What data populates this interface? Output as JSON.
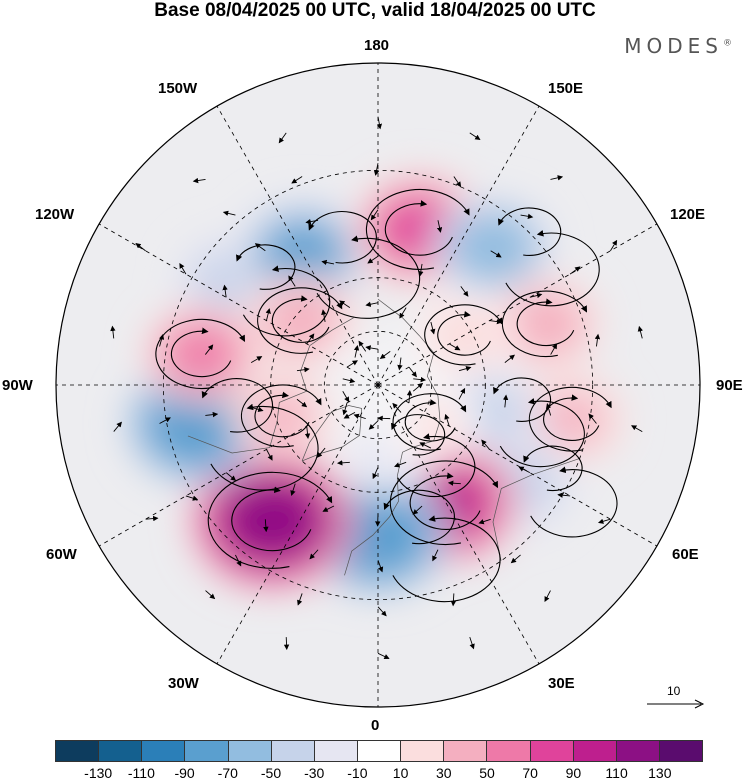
{
  "title": "Base 08/04/2025 00 UTC, valid 18/04/2025 00 UTC",
  "brand": "MODES",
  "brand_mark": "®",
  "longitude_labels": {
    "n180": "180",
    "e150": "150E",
    "e120": "120E",
    "e90": "90E",
    "e60": "60E",
    "e30": "30E",
    "zero": "0",
    "w30": "30W",
    "w60": "60W",
    "w90": "90W",
    "w120": "120W",
    "w150": "150W"
  },
  "reference_vector_label": "10",
  "colorbar": {
    "colors": [
      "#0d3c5e",
      "#14608f",
      "#2b7fb8",
      "#5a9fcf",
      "#92bde0",
      "#c6d3ea",
      "#e6e6f2",
      "#ffffff",
      "#fbdede",
      "#f4afc0",
      "#ee79a8",
      "#e0439b",
      "#be1f8e",
      "#8c1084",
      "#5a0c6e"
    ],
    "tick_labels": [
      "-130",
      "-110",
      "-90",
      "-70",
      "-50",
      "-30",
      "-10",
      "10",
      "30",
      "50",
      "70",
      "90",
      "110",
      "130"
    ]
  },
  "anomaly_centers": [
    {
      "lon": -125,
      "lat": 40,
      "value": -45
    },
    {
      "lon": -150,
      "lat": 48,
      "value": -80
    },
    {
      "lon": 165,
      "lat": 45,
      "value": 80
    },
    {
      "lon": 140,
      "lat": 40,
      "value": -60
    },
    {
      "lon": 110,
      "lat": 40,
      "value": 40
    },
    {
      "lon": 120,
      "lat": 62,
      "value": 25
    },
    {
      "lon": 80,
      "lat": 35,
      "value": 35
    },
    {
      "lon": 75,
      "lat": 58,
      "value": -40
    },
    {
      "lon": 55,
      "lat": 42,
      "value": -45
    },
    {
      "lon": 30,
      "lat": 52,
      "value": 90
    },
    {
      "lon": 0,
      "lat": 48,
      "value": -90
    },
    {
      "lon": -38,
      "lat": 42,
      "value": 125
    },
    {
      "lon": -78,
      "lat": 38,
      "value": -90
    },
    {
      "lon": -100,
      "lat": 40,
      "value": 50
    },
    {
      "lon": -130,
      "lat": 62,
      "value": 40
    },
    {
      "lon": -72,
      "lat": 62,
      "value": 30
    },
    {
      "lon": 8,
      "lat": 72,
      "value": -25
    },
    {
      "lon": 55,
      "lat": 72,
      "value": 15
    }
  ]
}
